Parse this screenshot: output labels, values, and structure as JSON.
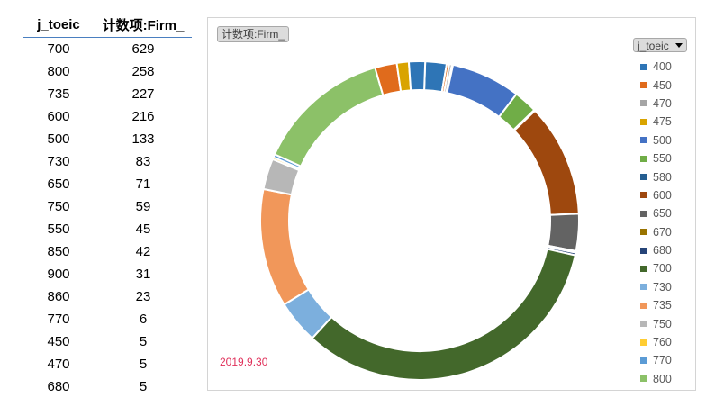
{
  "table": {
    "headers": [
      "j_toeic",
      "计数项:Firm_"
    ],
    "rows": [
      [
        "700",
        "629"
      ],
      [
        "800",
        "258"
      ],
      [
        "735",
        "227"
      ],
      [
        "600",
        "216"
      ],
      [
        "500",
        "133"
      ],
      [
        "730",
        "83"
      ],
      [
        "650",
        "71"
      ],
      [
        "750",
        "59"
      ],
      [
        "550",
        "45"
      ],
      [
        "850",
        "42"
      ],
      [
        "900",
        "31"
      ],
      [
        "860",
        "23"
      ],
      [
        "770",
        "6"
      ],
      [
        "450",
        "5"
      ],
      [
        "470",
        "5"
      ],
      [
        "680",
        "5"
      ]
    ]
  },
  "chart": {
    "pivot_button_label": "计数项:Firm_",
    "legend_button_label": "j_toeic",
    "date_label": "2019.9.30"
  },
  "chart_data": {
    "type": "pie",
    "variant": "donut",
    "legend_position": "right",
    "categories": [
      "400",
      "450",
      "470",
      "475",
      "500",
      "550",
      "580",
      "600",
      "650",
      "670",
      "680",
      "700",
      "730",
      "735",
      "750",
      "760",
      "770",
      "800",
      "850",
      "860",
      "900"
    ],
    "values": [
      41,
      5,
      5,
      2,
      133,
      45,
      2,
      216,
      71,
      3,
      5,
      629,
      83,
      227,
      59,
      4,
      6,
      258,
      42,
      23,
      31
    ],
    "colors": [
      "#2e75b6",
      "#e06b1c",
      "#a5a5a5",
      "#d9a400",
      "#4472c4",
      "#70ad47",
      "#255e91",
      "#9e480e",
      "#636363",
      "#997300",
      "#264478",
      "#43682b",
      "#7cafdd",
      "#f1975a",
      "#b7b7b7",
      "#ffcd33",
      "#5b9bd5",
      "#8cc168",
      "#e06b1c",
      "#d9a400",
      "#2e75b6"
    ],
    "legend_shown": [
      "400",
      "450",
      "470",
      "475",
      "500",
      "550",
      "580",
      "600",
      "650",
      "670",
      "680",
      "700",
      "730",
      "735",
      "750",
      "760",
      "770",
      "800"
    ]
  }
}
